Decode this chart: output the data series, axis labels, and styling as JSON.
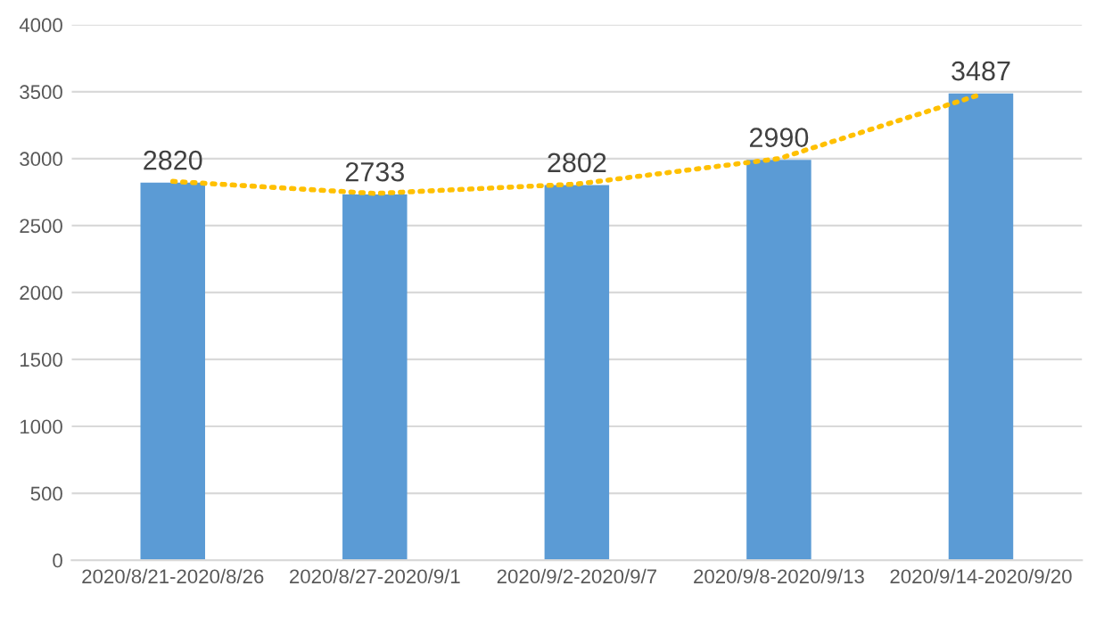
{
  "chart_data": {
    "type": "bar",
    "categories": [
      "2020/8/21-2020/8/26",
      "2020/8/27-2020/9/1",
      "2020/9/2-2020/9/7",
      "2020/9/8-2020/9/13",
      "2020/9/14-2020/9/20"
    ],
    "series": [
      {
        "color": "#5b9bd5",
        "values": [
          2820,
          2733,
          2802,
          2990,
          3487
        ],
        "value_labels": [
          "2820",
          "2733",
          "2802",
          "2990",
          "3487"
        ]
      },
      {
        "type": "line",
        "color": "#ffc000",
        "line_style": "dotted",
        "values": [
          2830,
          2740,
          2810,
          3000,
          3480
        ]
      }
    ],
    "ylim": [
      0,
      4000
    ],
    "yticks": [
      0,
      500,
      1000,
      1500,
      2000,
      2500,
      3000,
      3500,
      4000
    ],
    "grid": "y",
    "legend": false
  }
}
